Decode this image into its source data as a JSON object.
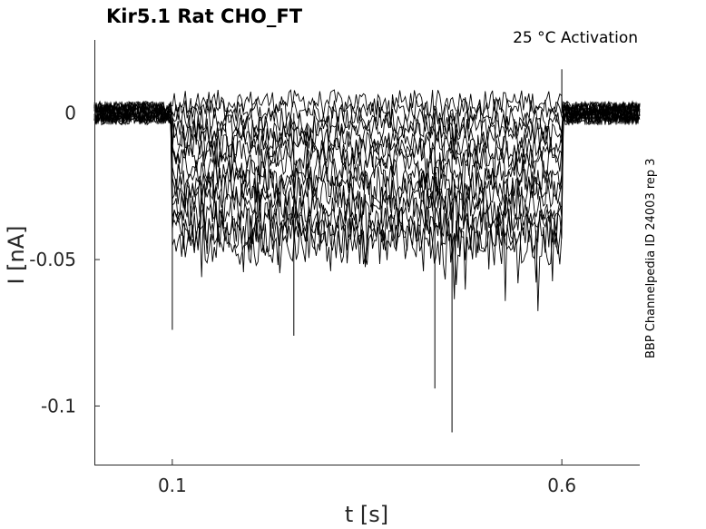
{
  "chart_data": {
    "type": "line",
    "title": "Kir5.1  Rat  CHO_FT",
    "annotation": "25 °C  Activation",
    "side_note": "BBP Channelpedia ID 24003 rep 3",
    "xlabel": "t [s]",
    "ylabel": "I [nA]",
    "xlim": [
      0.0,
      0.7
    ],
    "ylim": [
      -0.12,
      0.025
    ],
    "xticks": [
      0.1,
      0.6
    ],
    "xtick_labels": [
      "0.1",
      "0.6"
    ],
    "yticks": [
      0,
      -0.05,
      -0.1
    ],
    "ytick_labels": [
      "0",
      "-0.05",
      "-0.1"
    ],
    "grid": false,
    "line_color": "#000000",
    "step_on": 0.1,
    "step_off": 0.6,
    "noise_amplitude_nA": 0.004,
    "series_steady_currents_nA": [
      0.004,
      0.001,
      -0.002,
      -0.005,
      -0.008,
      -0.011,
      -0.014,
      -0.017,
      -0.021,
      -0.024,
      -0.027,
      -0.031,
      -0.034,
      -0.038,
      -0.041,
      -0.045
    ],
    "notable_extremes": [
      {
        "t": 0.1,
        "i": -0.074
      },
      {
        "t": 0.256,
        "i": -0.076
      },
      {
        "t": 0.437,
        "i": -0.094
      },
      {
        "t": 0.459,
        "i": -0.109
      },
      {
        "t": 0.6,
        "i": 0.015
      }
    ]
  }
}
